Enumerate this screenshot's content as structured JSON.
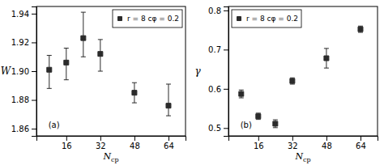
{
  "chart_data": [
    {
      "type": "scatter",
      "x_label": "Ncp",
      "y_label": "W",
      "x": [
        8,
        16,
        24,
        32,
        48,
        64
      ],
      "series": [
        {
          "name": "r = 8 cφ = 0.2",
          "color": "#2b2b2b",
          "marker": "square",
          "values": [
            1.901,
            1.906,
            1.923,
            1.912,
            1.885,
            1.876
          ],
          "error_lo": [
            0.013,
            0.012,
            0.013,
            0.012,
            0.007,
            0.007
          ],
          "error_hi": [
            0.01,
            0.01,
            0.018,
            0.01,
            0.007,
            0.015
          ]
        }
      ],
      "xlim": [
        2,
        72
      ],
      "ylim": [
        1.855,
        1.945
      ],
      "xticks": [
        16,
        32,
        48,
        64
      ],
      "yticks": [
        1.86,
        1.88,
        {
          "value": 1.9,
          "label": "1.90"
        },
        1.92,
        1.94
      ],
      "legend": "upper right",
      "grid": false,
      "annotations": [
        "(a)"
      ]
    },
    {
      "type": "scatter",
      "x_label": "Ncp",
      "y_label": "γ",
      "x": [
        8,
        16,
        24,
        32,
        48,
        64
      ],
      "series": [
        {
          "name": "r = 8 cφ = 0.2",
          "color": "#2b2b2b",
          "marker": "square",
          "values": [
            0.587,
            0.53,
            0.511,
            0.62,
            0.678,
            0.752
          ],
          "error_lo": [
            0.01,
            0.008,
            0.01,
            0.008,
            0.025,
            0.008
          ],
          "error_hi": [
            0.01,
            0.008,
            0.01,
            0.008,
            0.025,
            0.008
          ]
        }
      ],
      "xlim": [
        2,
        72
      ],
      "ylim": [
        0.48,
        0.81
      ],
      "xticks": [
        16,
        32,
        48,
        64
      ],
      "yticks": [
        0.5,
        0.6,
        0.7,
        0.8
      ],
      "legend": "upper left",
      "grid": false,
      "annotations": [
        "(b)"
      ]
    }
  ]
}
